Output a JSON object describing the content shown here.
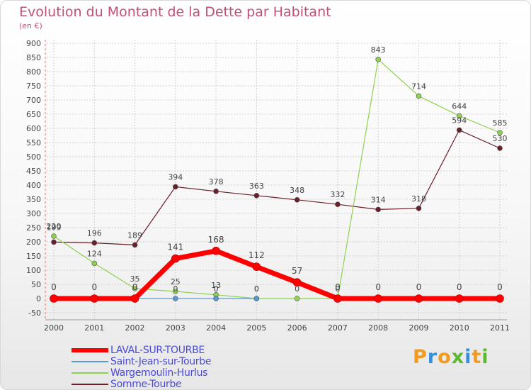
{
  "header": {
    "title": "Evolution du Montant de la Dette par Habitant",
    "unit": "(en €)"
  },
  "logo": {
    "text": "Proxiti",
    "letters": [
      "P",
      "r",
      "o",
      "x",
      "i",
      "t",
      "i"
    ]
  },
  "colors": {
    "title": "#c24f78",
    "legend_text": "#4a4ad8",
    "grid": "#d0d0d0",
    "axis": "#999999"
  },
  "chart_data": {
    "type": "line",
    "title": "Evolution du Montant de la Dette par Habitant",
    "ylabel": "(en €)",
    "xlabel": "",
    "categories": [
      "2000",
      "2001",
      "2002",
      "2003",
      "2004",
      "2005",
      "2006",
      "2007",
      "2008",
      "2009",
      "2010",
      "2011"
    ],
    "yticks": [
      -50,
      0,
      50,
      100,
      150,
      200,
      250,
      300,
      350,
      400,
      450,
      500,
      550,
      600,
      650,
      700,
      750,
      800,
      850,
      900
    ],
    "ylim": [
      -50,
      900
    ],
    "grid": true,
    "legend_position": "bottom-left",
    "series": [
      {
        "name": "LAVAL-SUR-TOURBE",
        "color": "#ff0000",
        "values": [
          0,
          0,
          0,
          141,
          168,
          112,
          57,
          0,
          0,
          0,
          0,
          0
        ],
        "labels": [
          "0",
          "0",
          "0",
          "141",
          "168",
          "112",
          "57",
          "0",
          "0",
          "0",
          "0",
          "0"
        ]
      },
      {
        "name": "Saint-Jean-sur-Tourbe",
        "color": "#5b9bd5",
        "values": [
          0,
          0,
          0,
          0,
          0,
          0,
          null,
          null,
          null,
          null,
          null,
          null
        ],
        "labels": [
          "",
          "",
          "",
          "0",
          "0",
          "0",
          "",
          "",
          "",
          "",
          "",
          ""
        ]
      },
      {
        "name": "Wargemoulin-Hurlus",
        "color": "#8fd14f",
        "values": [
          220,
          124,
          35,
          25,
          13,
          0,
          0,
          0,
          843,
          714,
          644,
          585
        ],
        "labels": [
          "220",
          "124",
          "35",
          "25",
          "13",
          "0",
          "0",
          "0",
          "843",
          "714",
          "644",
          "585"
        ]
      },
      {
        "name": "Somme-Tourbe",
        "color": "#6b1f2a",
        "values": [
          199,
          196,
          189,
          394,
          378,
          363,
          348,
          332,
          314,
          318,
          594,
          530
        ],
        "labels": [
          "199",
          "196",
          "189",
          "394",
          "378",
          "363",
          "348",
          "332",
          "314",
          "318",
          "594",
          "530"
        ]
      }
    ]
  }
}
